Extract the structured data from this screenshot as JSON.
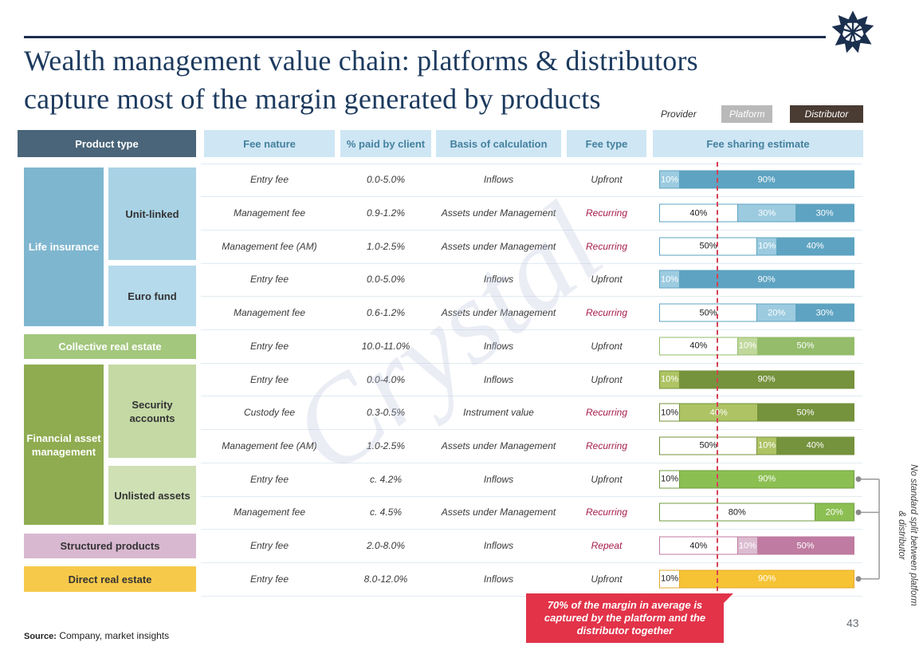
{
  "slide": {
    "title_line1": "Wealth management value chain: platforms & distributors",
    "title_line2": "capture most of the margin generated by products",
    "watermark": "Crystal",
    "source_label": "Source:",
    "source_text": "Company, market insights",
    "page_number": "43"
  },
  "legend": {
    "items": [
      {
        "label": "Provider",
        "bg": "#ffffff",
        "fg": "#333333"
      },
      {
        "label": "Platform",
        "bg": "#b9b9b9",
        "fg": "#ffffff"
      },
      {
        "label": "Distributor",
        "bg": "#4a3b33",
        "fg": "#ffffff"
      }
    ]
  },
  "table": {
    "headers": [
      "Product type",
      "Fee nature",
      "% paid by client",
      "Basis of calculation",
      "Fee type",
      "Fee sharing estimate"
    ]
  },
  "product_groups": {
    "life_insurance": {
      "label": "Life insurance",
      "bg": "#7fb6cf",
      "fg": "#ffffff"
    },
    "unit_linked": {
      "label": "Unit-linked",
      "bg": "#a9d2e5",
      "fg": "#333333"
    },
    "euro_fund": {
      "label": "Euro fund",
      "bg": "#b5daeb",
      "fg": "#333333"
    },
    "collective_real_estate": {
      "label": "Collective real estate",
      "bg": "#a3c77d",
      "fg": "#ffffff"
    },
    "financial_asset_management": {
      "label": "Financial asset management",
      "bg": "#8fac50",
      "fg": "#ffffff"
    },
    "security_accounts": {
      "label": "Security accounts",
      "bg": "#c4d9a4",
      "fg": "#333333"
    },
    "unlisted_assets": {
      "label": "Unlisted assets",
      "bg": "#cfe0b5",
      "fg": "#333333"
    },
    "structured_products": {
      "label": "Structured products",
      "bg": "#d8b8d1",
      "fg": "#333333"
    },
    "direct_real_estate": {
      "label": "Direct real estate",
      "bg": "#f7c94b",
      "fg": "#333333"
    }
  },
  "rows": [
    {
      "group": "unit_linked",
      "fee_nature": "Entry fee",
      "pct": "0.0-5.0%",
      "basis": "Inflows",
      "fee_type": "Upfront",
      "emphasis": false,
      "connector": false,
      "bar": {
        "border": "#5ea3c1",
        "segments": [
          {
            "role": "platform",
            "label": "10%",
            "pct": 10,
            "bg": "#9ccbe0",
            "fg": "#ffffff"
          },
          {
            "role": "distributor",
            "label": "90%",
            "pct": 90,
            "bg": "#5ea3c1",
            "fg": "#ffffff"
          }
        ]
      }
    },
    {
      "group": "unit_linked",
      "fee_nature": "Management fee",
      "pct": "0.9-1.2%",
      "basis": "Assets under Management",
      "fee_type": "Recurring",
      "emphasis": true,
      "connector": false,
      "bar": {
        "border": "#5ea3c1",
        "segments": [
          {
            "role": "provider",
            "label": "40%",
            "pct": 40,
            "bg": "#ffffff",
            "fg": "#1a1a1a"
          },
          {
            "role": "platform",
            "label": "30%",
            "pct": 30,
            "bg": "#9ccbe0",
            "fg": "#ffffff"
          },
          {
            "role": "distributor",
            "label": "30%",
            "pct": 30,
            "bg": "#5ea3c1",
            "fg": "#ffffff"
          }
        ]
      }
    },
    {
      "group": "unit_linked",
      "fee_nature": "Management fee (AM)",
      "pct": "1.0-2.5%",
      "basis": "Assets under Management",
      "fee_type": "Recurring",
      "emphasis": true,
      "connector": false,
      "bar": {
        "border": "#5ea3c1",
        "segments": [
          {
            "role": "provider",
            "label": "50%",
            "pct": 50,
            "bg": "#ffffff",
            "fg": "#1a1a1a"
          },
          {
            "role": "platform",
            "label": "10%",
            "pct": 10,
            "bg": "#9ccbe0",
            "fg": "#ffffff"
          },
          {
            "role": "distributor",
            "label": "40%",
            "pct": 40,
            "bg": "#5ea3c1",
            "fg": "#ffffff"
          }
        ]
      }
    },
    {
      "group": "euro_fund",
      "fee_nature": "Entry fee",
      "pct": "0.0-5.0%",
      "basis": "Inflows",
      "fee_type": "Upfront",
      "emphasis": false,
      "connector": false,
      "bar": {
        "border": "#5ea3c1",
        "segments": [
          {
            "role": "platform",
            "label": "10%",
            "pct": 10,
            "bg": "#9ccbe0",
            "fg": "#ffffff"
          },
          {
            "role": "distributor",
            "label": "90%",
            "pct": 90,
            "bg": "#5ea3c1",
            "fg": "#ffffff"
          }
        ]
      }
    },
    {
      "group": "euro_fund",
      "fee_nature": "Management fee",
      "pct": "0.6-1.2%",
      "basis": "Assets under Management",
      "fee_type": "Recurring",
      "emphasis": true,
      "connector": false,
      "bar": {
        "border": "#5ea3c1",
        "segments": [
          {
            "role": "provider",
            "label": "50%",
            "pct": 50,
            "bg": "#ffffff",
            "fg": "#1a1a1a"
          },
          {
            "role": "platform",
            "label": "20%",
            "pct": 20,
            "bg": "#9ccbe0",
            "fg": "#ffffff"
          },
          {
            "role": "distributor",
            "label": "30%",
            "pct": 30,
            "bg": "#5ea3c1",
            "fg": "#ffffff"
          }
        ]
      }
    },
    {
      "group": "collective_real_estate",
      "fee_nature": "Entry fee",
      "pct": "10.0-11.0%",
      "basis": "Inflows",
      "fee_type": "Upfront",
      "emphasis": false,
      "connector": false,
      "bar": {
        "border": "#94bc6b",
        "segments": [
          {
            "role": "provider",
            "label": "40%",
            "pct": 40,
            "bg": "#ffffff",
            "fg": "#1a1a1a"
          },
          {
            "role": "platform",
            "label": "10%",
            "pct": 10,
            "bg": "#c0d89c",
            "fg": "#ffffff"
          },
          {
            "role": "distributor",
            "label": "50%",
            "pct": 50,
            "bg": "#94bc6b",
            "fg": "#ffffff"
          }
        ]
      }
    },
    {
      "group": "security_accounts",
      "fee_nature": "Entry fee",
      "pct": "0.0-4.0%",
      "basis": "Inflows",
      "fee_type": "Upfront",
      "emphasis": false,
      "connector": false,
      "bar": {
        "border": "#75923c",
        "segments": [
          {
            "role": "platform",
            "label": "10%",
            "pct": 10,
            "bg": "#aec363",
            "fg": "#ffffff"
          },
          {
            "role": "distributor",
            "label": "90%",
            "pct": 90,
            "bg": "#75923c",
            "fg": "#ffffff"
          }
        ]
      }
    },
    {
      "group": "security_accounts",
      "fee_nature": "Custody fee",
      "pct": "0.3-0.5%",
      "basis": "Instrument value",
      "fee_type": "Recurring",
      "emphasis": true,
      "connector": false,
      "bar": {
        "border": "#75923c",
        "segments": [
          {
            "role": "provider",
            "label": "10%",
            "pct": 10,
            "bg": "#ffffff",
            "fg": "#1a1a1a"
          },
          {
            "role": "platform",
            "label": "40%",
            "pct": 40,
            "bg": "#aec363",
            "fg": "#ffffff"
          },
          {
            "role": "distributor",
            "label": "50%",
            "pct": 50,
            "bg": "#75923c",
            "fg": "#ffffff"
          }
        ]
      }
    },
    {
      "group": "security_accounts",
      "fee_nature": "Management fee (AM)",
      "pct": "1.0-2.5%",
      "basis": "Assets under Management",
      "fee_type": "Recurring",
      "emphasis": true,
      "connector": false,
      "bar": {
        "border": "#75923c",
        "segments": [
          {
            "role": "provider",
            "label": "50%",
            "pct": 50,
            "bg": "#ffffff",
            "fg": "#1a1a1a"
          },
          {
            "role": "platform",
            "label": "10%",
            "pct": 10,
            "bg": "#aec363",
            "fg": "#ffffff"
          },
          {
            "role": "distributor",
            "label": "40%",
            "pct": 40,
            "bg": "#75923c",
            "fg": "#ffffff"
          }
        ]
      }
    },
    {
      "group": "unlisted_assets",
      "fee_nature": "Entry fee",
      "pct": "c. 4.2%",
      "basis": "Inflows",
      "fee_type": "Upfront",
      "emphasis": false,
      "connector": true,
      "bar": {
        "border": "#6f9e3f",
        "segments": [
          {
            "role": "provider",
            "label": "10%",
            "pct": 10,
            "bg": "#ffffff",
            "fg": "#1a1a1a"
          },
          {
            "role": "platform-distributor",
            "label": "90%",
            "pct": 90,
            "bg": "#8cbf52",
            "fg": "#ffffff"
          }
        ]
      }
    },
    {
      "group": "unlisted_assets",
      "fee_nature": "Management fee",
      "pct": "c. 4.5%",
      "basis": "Assets under Management",
      "fee_type": "Recurring",
      "emphasis": true,
      "connector": true,
      "bar": {
        "border": "#6f9e3f",
        "segments": [
          {
            "role": "provider",
            "label": "80%",
            "pct": 80,
            "bg": "#ffffff",
            "fg": "#1a1a1a"
          },
          {
            "role": "platform-distributor",
            "label": "20%",
            "pct": 20,
            "bg": "#8cbf52",
            "fg": "#ffffff"
          }
        ]
      }
    },
    {
      "group": "structured_products",
      "fee_nature": "Entry fee",
      "pct": "2.0-8.0%",
      "basis": "Inflows",
      "fee_type": "Repeat",
      "emphasis": true,
      "connector": false,
      "bar": {
        "border": "#bf7ba1",
        "segments": [
          {
            "role": "provider",
            "label": "40%",
            "pct": 40,
            "bg": "#ffffff",
            "fg": "#1a1a1a"
          },
          {
            "role": "platform",
            "label": "10%",
            "pct": 10,
            "bg": "#dcbcd1",
            "fg": "#ffffff"
          },
          {
            "role": "distributor",
            "label": "50%",
            "pct": 50,
            "bg": "#bf7ba1",
            "fg": "#ffffff"
          }
        ]
      }
    },
    {
      "group": "direct_real_estate",
      "fee_nature": "Entry fee",
      "pct": "8.0-12.0%",
      "basis": "Inflows",
      "fee_type": "Upfront",
      "emphasis": false,
      "connector": true,
      "bar": {
        "border": "#e4a82b",
        "segments": [
          {
            "role": "provider",
            "label": "10%",
            "pct": 10,
            "bg": "#ffffff",
            "fg": "#1a1a1a"
          },
          {
            "role": "platform-distributor",
            "label": "90%",
            "pct": 90,
            "bg": "#f6c334",
            "fg": "#ffffff"
          }
        ]
      }
    }
  ],
  "side_note": {
    "text": "No standard split between platform & distributor"
  },
  "callout": {
    "text": "70% of the margin in average is captured by the platform and the distributor together",
    "bg": "#e23349",
    "fg": "#ffffff"
  },
  "colors": {
    "title": "#1c3a5e",
    "header_dark_bg": "#4a6579",
    "header_light_bg": "#cfe6f4",
    "header_light_text": "#44819f",
    "fee_text": "#3a3a3a",
    "fee_type_emphasis": "#a51c4b",
    "dashed_line": "#d94056",
    "watermark": "#b9c0de",
    "connector": "#8a8a8a",
    "page_number": "#6a6f76"
  }
}
